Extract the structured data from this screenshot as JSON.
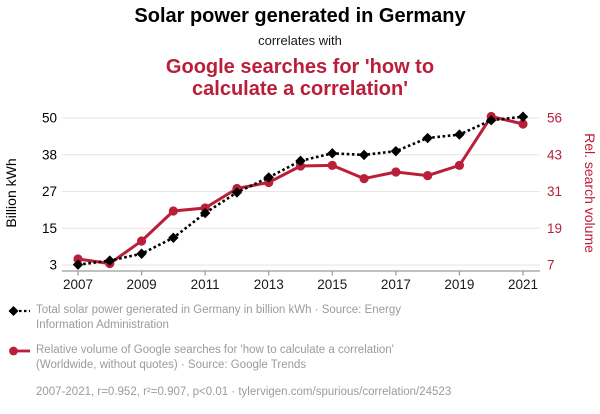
{
  "header": {
    "title": "Solar power generated in Germany",
    "connector": "correlates with",
    "title_red_lines": [
      "Google searches for 'how to",
      "calculate a correlation'"
    ]
  },
  "colors": {
    "accent_red": "#bb1e39",
    "series_black": "#000000",
    "gridline": "#e6e6e6",
    "axis": "#9a9a9a",
    "tick_label": "#1a1a1a",
    "legend_text": "#9b9b9b"
  },
  "chart_data": {
    "type": "line",
    "title": "Solar power generated in Germany correlates with Google searches for 'how to calculate a correlation'",
    "x": [
      2007,
      2008,
      2009,
      2010,
      2011,
      2012,
      2013,
      2014,
      2015,
      2016,
      2017,
      2018,
      2019,
      2020,
      2021
    ],
    "x_ticks": [
      2007,
      2009,
      2011,
      2013,
      2015,
      2017,
      2019,
      2021
    ],
    "grid": true,
    "legend_position": "bottom",
    "left_axis": {
      "label": "Billion kWh",
      "ticks": [
        3,
        15,
        27,
        38,
        50
      ],
      "range": [
        3,
        50
      ]
    },
    "right_axis": {
      "label": "Rel. search volume",
      "ticks": [
        7,
        19,
        31,
        43,
        56
      ],
      "range": [
        7,
        56
      ]
    },
    "series": [
      {
        "name": "Total solar power generated in Germany in billion kWh",
        "axis": "left",
        "color": "#000000",
        "style": "dashed-diamond",
        "values": [
          3.1,
          4.4,
          6.6,
          11.7,
          19.6,
          26.2,
          31.0,
          36.3,
          38.7,
          38.2,
          39.4,
          43.6,
          44.7,
          49.3,
          50.4
        ]
      },
      {
        "name": "Relative volume of Google searches for 'how to calculate a correlation'",
        "axis": "right",
        "color": "#bb1e39",
        "style": "solid-circle",
        "values": [
          9,
          7.5,
          15,
          25,
          26,
          32.5,
          34.5,
          40,
          40.2,
          35.8,
          38,
          36.8,
          40.2,
          56.5,
          54
        ]
      }
    ]
  },
  "legend": {
    "series": [
      {
        "label": "Total solar power generated in Germany in billion kWh · Source: Energy Information Administration"
      },
      {
        "label": "Relative volume of Google searches for 'how to calculate a correlation' (Worldwide, without quotes) · Source: Google Trends"
      }
    ],
    "footnote": "2007-2021, r=0.952, r²=0.907, p<0.01 · tylervigen.com/spurious/correlation/24523"
  }
}
